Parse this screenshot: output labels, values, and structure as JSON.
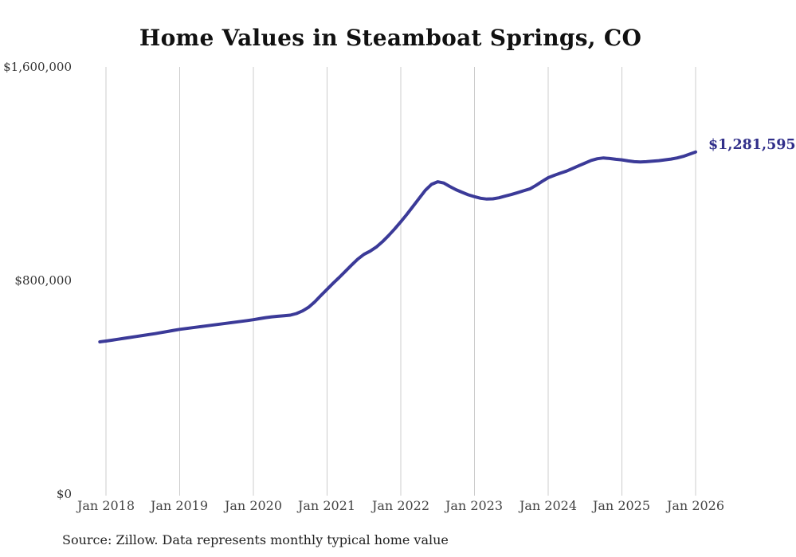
{
  "chart_data": {
    "type": "line",
    "title": "Home Values in Steamboat Springs, CO",
    "source_note": "Source: Zillow. Data represents monthly typical home value",
    "end_label": "$1,281,595",
    "final_value": 1281595,
    "ylim": [
      0,
      1600000
    ],
    "y_tick_labels": {
      "top": "$1,600,000",
      "mid": "$800,000",
      "bottom": "$0"
    },
    "x_tick_labels": [
      "Jan 2018",
      "Jan 2019",
      "Jan 2020",
      "Jan 2021",
      "Jan 2022",
      "Jan 2023",
      "Jan 2024",
      "Jan 2025",
      "Jan 2026"
    ],
    "x_start": "2017-12",
    "interval": "monthly",
    "grid": "vertical-only",
    "legend": "none",
    "line_color": "#3b3a98",
    "grid_color": "#cccccc",
    "values": [
      570000,
      573000,
      576500,
      580000,
      583500,
      587000,
      590500,
      594000,
      597500,
      601000,
      605000,
      609000,
      613000,
      617000,
      620000,
      623000,
      626000,
      629000,
      632000,
      635000,
      638000,
      641000,
      644000,
      647000,
      650000,
      653000,
      657000,
      661000,
      664000,
      666000,
      668000,
      670000,
      676000,
      686000,
      700000,
      720000,
      744000,
      767000,
      790000,
      812000,
      835000,
      858000,
      880000,
      898000,
      910000,
      925000,
      945000,
      968000,
      993000,
      1020000,
      1048000,
      1078000,
      1108000,
      1138000,
      1160000,
      1170000,
      1165000,
      1152000,
      1140000,
      1130000,
      1121000,
      1114000,
      1108000,
      1105000,
      1106000,
      1110000,
      1116000,
      1122000,
      1129000,
      1136000,
      1143000,
      1156000,
      1171000,
      1185000,
      1194000,
      1202000,
      1210000,
      1220000,
      1230000,
      1240000,
      1250000,
      1256000,
      1259000,
      1257000,
      1254000,
      1252000,
      1248000,
      1245000,
      1244000,
      1245000,
      1247000,
      1249000,
      1252000,
      1255000,
      1259000,
      1265000,
      1273000,
      1281595
    ]
  }
}
